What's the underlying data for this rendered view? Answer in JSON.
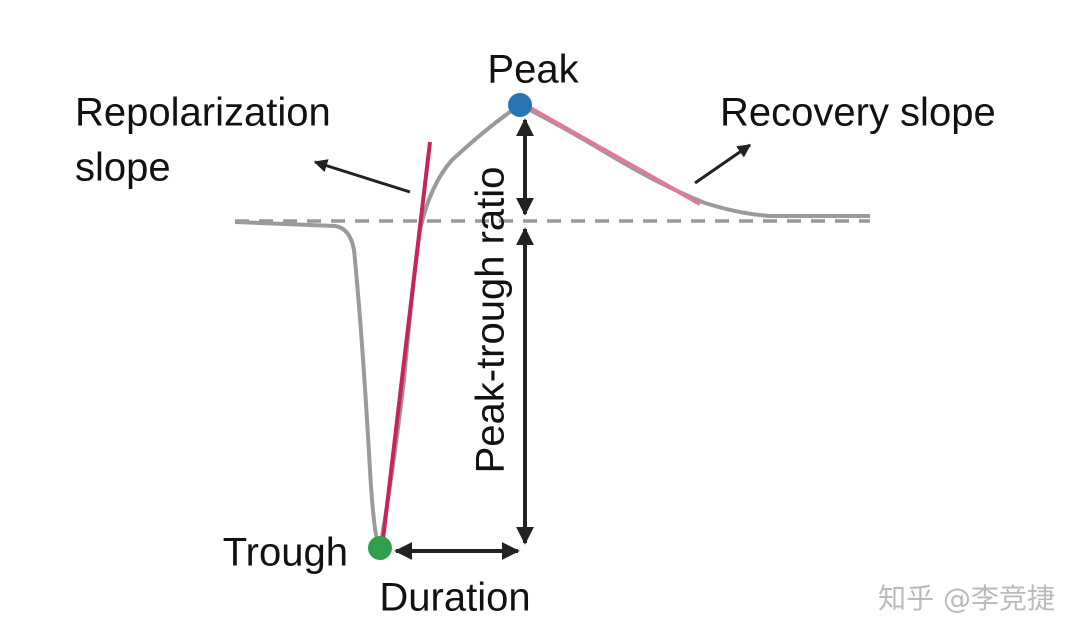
{
  "labels": {
    "peak": "Peak",
    "repolarization_slope": [
      "Repolarization",
      "slope"
    ],
    "recovery_slope": "Recovery slope",
    "peak_trough_ratio": "Peak-trough ratio",
    "trough": "Trough",
    "duration": "Duration"
  },
  "watermark": "知乎 @李竞捷"
}
